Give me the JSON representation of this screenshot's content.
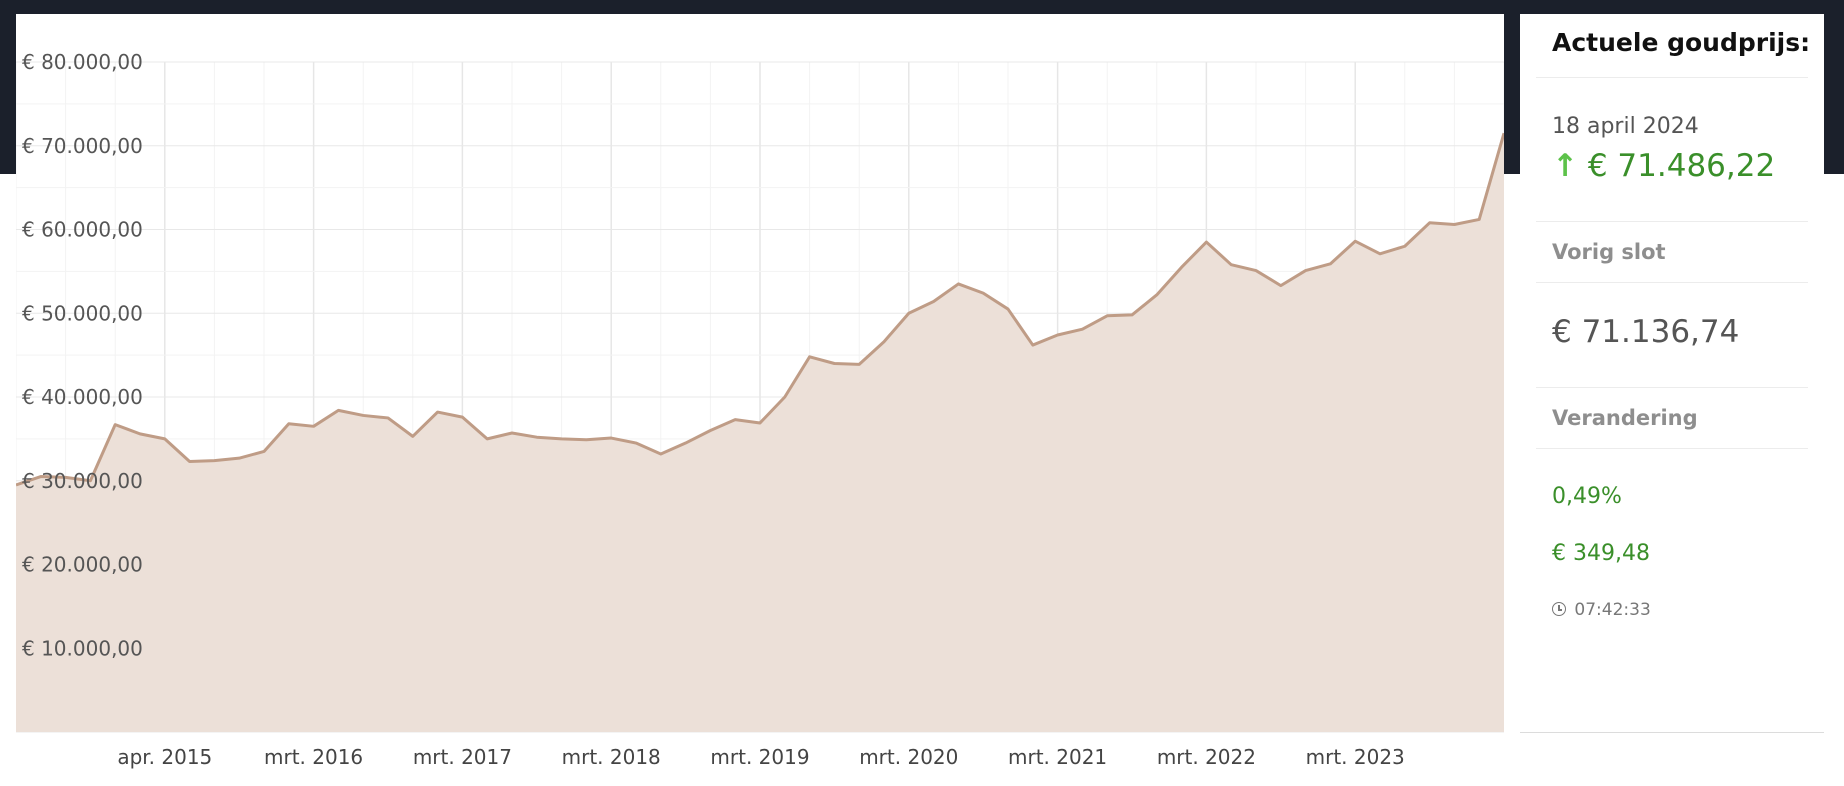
{
  "chart_data": {
    "type": "area",
    "title": "",
    "xlabel": "",
    "ylabel": "",
    "ylim": [
      0,
      80000
    ],
    "y_ticks": [
      {
        "value": 10000,
        "label": "€ 10.000,00"
      },
      {
        "value": 20000,
        "label": "€ 20.000,00"
      },
      {
        "value": 30000,
        "label": "€ 30.000,00"
      },
      {
        "value": 40000,
        "label": "€ 40.000,00"
      },
      {
        "value": 50000,
        "label": "€ 50.000,00"
      },
      {
        "value": 60000,
        "label": "€ 60.000,00"
      },
      {
        "value": 70000,
        "label": "€ 70.000,00"
      },
      {
        "value": 80000,
        "label": "€ 80.000,00"
      }
    ],
    "x_ticks": [
      {
        "index": 6,
        "label": "apr. 2015"
      },
      {
        "index": 12,
        "label": "mrt. 2016"
      },
      {
        "index": 18,
        "label": "mrt. 2017"
      },
      {
        "index": 24,
        "label": "mrt. 2018"
      },
      {
        "index": 30,
        "label": "mrt. 2019"
      },
      {
        "index": 36,
        "label": "mrt. 2020"
      },
      {
        "index": 42,
        "label": "mrt. 2021"
      },
      {
        "index": 48,
        "label": "mrt. 2022"
      },
      {
        "index": 54,
        "label": "mrt. 2023"
      }
    ],
    "grid": true,
    "colors": {
      "line": "#bf9c86",
      "fill": "#ece0d8",
      "grid": "#ececec"
    },
    "series": [
      {
        "values": [
          29500,
          30500,
          30400,
          30000,
          36700,
          35600,
          35000,
          32300,
          32400,
          32700,
          33500,
          36800,
          36500,
          38400,
          37800,
          37500,
          35300,
          38200,
          37600,
          35000,
          35700,
          35200,
          35000,
          34900,
          35100,
          34500,
          33200,
          34500,
          36000,
          37300,
          36900,
          40000,
          44800,
          44000,
          43900,
          46600,
          50000,
          51400,
          53500,
          52400,
          50500,
          46200,
          47400,
          48100,
          49700,
          49800,
          52200,
          55500,
          58500,
          55800,
          55100,
          53300,
          55100,
          55900,
          58600,
          57100,
          58000,
          60800,
          60600,
          61200,
          71500
        ]
      }
    ]
  },
  "side": {
    "title": "Actuele goudprijs:",
    "date": "18 april 2024",
    "arrow": "↑",
    "price": "€ 71.486,22",
    "prev_label": "Vorig slot",
    "prev_value": "€ 71.136,74",
    "change_label": "Verandering",
    "change_pct": "0,49%",
    "change_abs": "€ 349,48",
    "time": "07:42:33"
  }
}
